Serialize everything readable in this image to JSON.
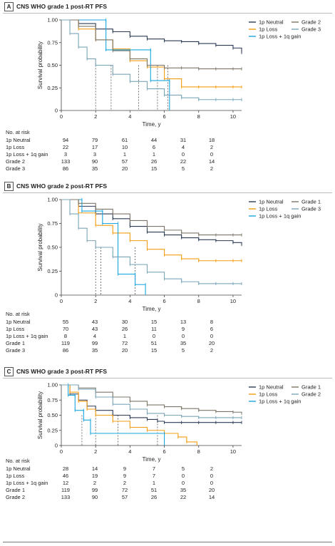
{
  "risk_header": "No. at risk",
  "colors": {
    "neutral": "#2b3a55",
    "loss": "#f39c12",
    "gain": "#1aa6de",
    "grade_a": "#7d7568",
    "grade_b": "#7aa5b8"
  },
  "chart_data": [
    {
      "type": "line",
      "panel_letter": "A",
      "title": "CNS WHO grade 1 post-RT PFS",
      "xlabel": "Time, y",
      "ylabel": "Survival probability",
      "xlim": [
        0,
        10.5
      ],
      "ylim": [
        0,
        1
      ],
      "x_ticks": [
        0,
        2,
        4,
        6,
        8,
        10
      ],
      "y_ticks": [
        0,
        0.25,
        0.5,
        0.75,
        1.0
      ],
      "y_tick_labels": [
        "0",
        "0.25",
        "0.50",
        "0.75",
        "1.00"
      ],
      "legend_position": "top-right",
      "legend": [
        [
          "1p Neutral",
          "Grade 2"
        ],
        [
          "1p Loss",
          "Grade 3"
        ],
        [
          "1p Loss + 1q gain"
        ]
      ],
      "series": [
        {
          "name": "1p Neutral",
          "key": "neutral",
          "x": [
            0,
            1,
            2,
            3,
            4,
            5,
            6,
            7,
            8,
            9,
            10,
            10.5
          ],
          "y": [
            1.0,
            0.96,
            0.9,
            0.87,
            0.82,
            0.79,
            0.77,
            0.76,
            0.74,
            0.72,
            0.69,
            0.64
          ]
        },
        {
          "name": "1p Loss",
          "key": "loss",
          "x": [
            0,
            1,
            2,
            3,
            4,
            5,
            6,
            7,
            8,
            9,
            10,
            10.5
          ],
          "y": [
            1.0,
            0.9,
            0.78,
            0.68,
            0.55,
            0.48,
            0.35,
            0.26,
            0.26,
            0.26,
            0.26,
            0.26
          ]
        },
        {
          "name": "1p Loss + 1q gain",
          "key": "gain",
          "x": [
            0,
            2.6,
            2.6,
            5.2,
            5.2,
            6.3,
            6.3
          ],
          "y": [
            1.0,
            1.0,
            0.67,
            0.67,
            0.33,
            0.33,
            0.0
          ]
        },
        {
          "name": "Grade 2",
          "key": "grade_a",
          "x": [
            0,
            1,
            2,
            3,
            4,
            5,
            6,
            7,
            8,
            9,
            10,
            10.5
          ],
          "y": [
            1.0,
            0.93,
            0.78,
            0.66,
            0.57,
            0.5,
            0.47,
            0.47,
            0.46,
            0.46,
            0.46,
            0.46
          ]
        },
        {
          "name": "Grade 3",
          "key": "grade_b",
          "x": [
            0,
            0.5,
            1,
            1.5,
            2,
            3,
            4,
            5,
            6,
            7,
            8,
            9,
            10,
            10.5
          ],
          "y": [
            1.0,
            0.85,
            0.7,
            0.57,
            0.5,
            0.4,
            0.32,
            0.24,
            0.17,
            0.14,
            0.12,
            0.12,
            0.12,
            0.12
          ]
        }
      ],
      "median_lines": [
        2.0,
        2.9,
        4.5,
        5.6,
        6.2
      ],
      "risk_table": {
        "times": [
          0,
          2,
          4,
          6,
          8,
          10
        ],
        "rows": [
          {
            "label": "1p Neutral",
            "values": [
              "94",
              "79",
              "61",
              "44",
              "31",
              "18"
            ]
          },
          {
            "label": "1p Loss",
            "values": [
              "22",
              "17",
              "10",
              "6",
              "4",
              "2"
            ]
          },
          {
            "label": "1p Loss + 1q gain",
            "values": [
              "3",
              "3",
              "1",
              "1",
              "0",
              "0"
            ]
          },
          {
            "label": "Grade 2",
            "values": [
              "133",
              "90",
              "57",
              "26",
              "22",
              "14"
            ]
          },
          {
            "label": "Grade 3",
            "values": [
              "86",
              "35",
              "20",
              "15",
              "5",
              "2"
            ]
          }
        ]
      }
    },
    {
      "type": "line",
      "panel_letter": "B",
      "title": "CNS WHO grade 2 post-RT PFS",
      "xlabel": "Time, y",
      "ylabel": "Survival probability",
      "xlim": [
        0,
        10.5
      ],
      "ylim": [
        0,
        1
      ],
      "x_ticks": [
        0,
        2,
        4,
        6,
        8,
        10
      ],
      "y_ticks": [
        0,
        0.25,
        0.5,
        0.75,
        1.0
      ],
      "y_tick_labels": [
        "0",
        "0.25",
        "0.50",
        "0.75",
        "1.00"
      ],
      "legend_position": "top-right",
      "legend": [
        [
          "1p Neutral",
          "Grade 1"
        ],
        [
          "1p Loss",
          "Grade 3"
        ],
        [
          "1p Loss + 1q gain"
        ]
      ],
      "series": [
        {
          "name": "1p Neutral",
          "key": "neutral",
          "x": [
            0,
            1,
            2,
            3,
            4,
            5,
            6,
            7,
            8,
            9,
            10,
            10.5
          ],
          "y": [
            1.0,
            0.93,
            0.85,
            0.8,
            0.72,
            0.66,
            0.63,
            0.6,
            0.58,
            0.57,
            0.55,
            0.53
          ]
        },
        {
          "name": "1p Loss",
          "key": "loss",
          "x": [
            0,
            1,
            2,
            3,
            4,
            5,
            6,
            7,
            8,
            9,
            10,
            10.5
          ],
          "y": [
            1.0,
            0.86,
            0.73,
            0.65,
            0.57,
            0.48,
            0.42,
            0.38,
            0.36,
            0.36,
            0.36,
            0.36
          ]
        },
        {
          "name": "1p Loss + 1q gain",
          "key": "gain",
          "x": [
            0,
            1.2,
            1.2,
            2.4,
            2.4,
            3.3,
            3.3,
            4.3,
            4.3,
            4.9,
            4.9
          ],
          "y": [
            1.0,
            1.0,
            0.88,
            0.88,
            0.75,
            0.75,
            0.22,
            0.22,
            0.11,
            0.11,
            0.0
          ]
        },
        {
          "name": "Grade 1",
          "key": "grade_a",
          "x": [
            0,
            1,
            2,
            3,
            4,
            5,
            6,
            7,
            8,
            9,
            10,
            10.5
          ],
          "y": [
            1.0,
            0.96,
            0.9,
            0.85,
            0.78,
            0.72,
            0.68,
            0.65,
            0.63,
            0.63,
            0.63,
            0.63
          ]
        },
        {
          "name": "Grade 3",
          "key": "grade_b",
          "x": [
            0,
            0.5,
            1,
            1.5,
            2,
            3,
            4,
            5,
            6,
            7,
            8,
            9,
            10,
            10.5
          ],
          "y": [
            1.0,
            0.85,
            0.7,
            0.57,
            0.5,
            0.4,
            0.32,
            0.24,
            0.17,
            0.14,
            0.12,
            0.12,
            0.12,
            0.12
          ]
        }
      ],
      "median_lines": [
        2.0,
        2.3,
        4.3
      ],
      "risk_table": {
        "times": [
          0,
          2,
          4,
          6,
          8,
          10
        ],
        "rows": [
          {
            "label": "1p Neutral",
            "values": [
              "55",
              "43",
              "30",
              "15",
              "13",
              "8"
            ]
          },
          {
            "label": "1p Loss",
            "values": [
              "70",
              "43",
              "26",
              "11",
              "9",
              "6"
            ]
          },
          {
            "label": "1p Loss + 1q gain",
            "values": [
              "8",
              "4",
              "1",
              "0",
              "0",
              "0"
            ]
          },
          {
            "label": "Grade 1",
            "values": [
              "119",
              "99",
              "72",
              "51",
              "35",
              "20"
            ]
          },
          {
            "label": "Grade 3",
            "values": [
              "86",
              "35",
              "20",
              "15",
              "5",
              "2"
            ]
          }
        ]
      }
    },
    {
      "type": "line",
      "panel_letter": "C",
      "title": "CNS WHO grade 3 post-RT PFS",
      "xlabel": "Time, y",
      "ylabel": "Survival probability",
      "xlim": [
        0,
        10.5
      ],
      "ylim": [
        0,
        1
      ],
      "x_ticks": [
        0,
        2,
        4,
        6,
        8,
        10
      ],
      "y_ticks": [
        0,
        0.25,
        0.5,
        0.75,
        1.0
      ],
      "y_tick_labels": [
        "0",
        "0.25",
        "0.50",
        "0.75",
        "1.00"
      ],
      "legend_position": "top-right",
      "legend": [
        [
          "1p Neutral",
          "Grade 1"
        ],
        [
          "1p Loss",
          "Grade 2"
        ],
        [
          "1p Loss + 1q gain"
        ]
      ],
      "series": [
        {
          "name": "1p Neutral",
          "key": "neutral",
          "x": [
            0,
            0.5,
            1,
            1.5,
            2,
            3,
            4,
            5,
            5.6,
            6,
            7,
            8,
            9,
            10,
            10.5
          ],
          "y": [
            1.0,
            0.85,
            0.75,
            0.65,
            0.58,
            0.5,
            0.46,
            0.43,
            0.4,
            0.38,
            0.38,
            0.38,
            0.38,
            0.38,
            0.38
          ]
        },
        {
          "name": "1p Loss",
          "key": "loss",
          "x": [
            0,
            0.5,
            1,
            1.5,
            2,
            3,
            4,
            5,
            6,
            6.8,
            7.3,
            7.9
          ],
          "y": [
            1.0,
            0.88,
            0.73,
            0.6,
            0.5,
            0.4,
            0.3,
            0.25,
            0.2,
            0.14,
            0.06,
            0.0
          ]
        },
        {
          "name": "1p Loss + 1q gain",
          "key": "gain",
          "x": [
            0,
            0.4,
            0.4,
            0.8,
            0.8,
            1.3,
            1.3,
            1.7,
            1.7,
            6.0,
            6.0
          ],
          "y": [
            1.0,
            1.0,
            0.83,
            0.83,
            0.58,
            0.58,
            0.42,
            0.42,
            0.2,
            0.2,
            0.0
          ]
        },
        {
          "name": "Grade 1",
          "key": "grade_a",
          "x": [
            0,
            1,
            2,
            3,
            4,
            5,
            6,
            7,
            8,
            9,
            10,
            10.5
          ],
          "y": [
            1.0,
            0.95,
            0.88,
            0.8,
            0.73,
            0.67,
            0.64,
            0.61,
            0.58,
            0.56,
            0.55,
            0.53
          ]
        },
        {
          "name": "Grade 2",
          "key": "grade_b",
          "x": [
            0,
            1,
            2,
            3,
            4,
            5,
            6,
            7,
            8,
            9,
            10,
            10.5
          ],
          "y": [
            1.0,
            0.93,
            0.8,
            0.68,
            0.6,
            0.53,
            0.5,
            0.48,
            0.46,
            0.46,
            0.46,
            0.46
          ]
        }
      ],
      "median_lines": [
        1.2,
        2.0,
        3.3,
        5.6
      ],
      "risk_table": {
        "times": [
          0,
          2,
          4,
          6,
          8,
          10
        ],
        "rows": [
          {
            "label": "1p Neutral",
            "values": [
              "28",
              "14",
              "9",
              "7",
              "5",
              "2"
            ]
          },
          {
            "label": "1p Loss",
            "values": [
              "46",
              "19",
              "9",
              "7",
              "0",
              "0"
            ]
          },
          {
            "label": "1p Loss + 1q gain",
            "values": [
              "12",
              "2",
              "2",
              "1",
              "0",
              "0"
            ]
          },
          {
            "label": "Grade 1",
            "values": [
              "119",
              "99",
              "72",
              "51",
              "35",
              "20"
            ]
          },
          {
            "label": "Grade 2",
            "values": [
              "133",
              "90",
              "57",
              "26",
              "22",
              "14"
            ]
          }
        ]
      }
    }
  ]
}
